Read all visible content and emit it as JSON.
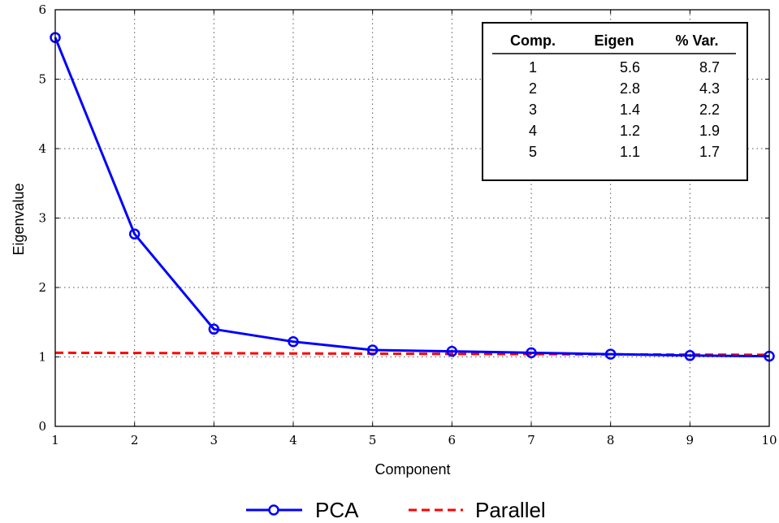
{
  "chart_data": {
    "type": "line",
    "xlabel": "Component",
    "ylabel": "Eigenvalue",
    "xlim": [
      1,
      10
    ],
    "ylim": [
      0,
      6
    ],
    "x_ticks": [
      "1",
      "2",
      "3",
      "4",
      "5",
      "6",
      "7",
      "8",
      "9",
      "10"
    ],
    "y_ticks": [
      "0",
      "1",
      "2",
      "3",
      "4",
      "5",
      "6"
    ],
    "grid": true,
    "legend_position": "bottom",
    "series": [
      {
        "name": "PCA",
        "style": "solid-with-circle-markers",
        "color": "#0000ff",
        "x": [
          1,
          2,
          3,
          4,
          5,
          6,
          7,
          8,
          9,
          10
        ],
        "y": [
          5.6,
          2.77,
          1.4,
          1.22,
          1.1,
          1.08,
          1.06,
          1.04,
          1.02,
          1.01
        ]
      },
      {
        "name": "Parallel",
        "style": "dashed",
        "color": "#ff0000",
        "x": [
          1,
          10
        ],
        "y": [
          1.06,
          1.03
        ]
      }
    ],
    "table": {
      "position": "top-right",
      "headers": [
        "Comp.",
        "Eigen",
        "% Var."
      ],
      "rows": [
        [
          "1",
          "5.6",
          "8.7"
        ],
        [
          "2",
          "2.8",
          "4.3"
        ],
        [
          "3",
          "1.4",
          "2.2"
        ],
        [
          "4",
          "1.2",
          "1.9"
        ],
        [
          "5",
          "1.1",
          "1.7"
        ]
      ]
    }
  }
}
